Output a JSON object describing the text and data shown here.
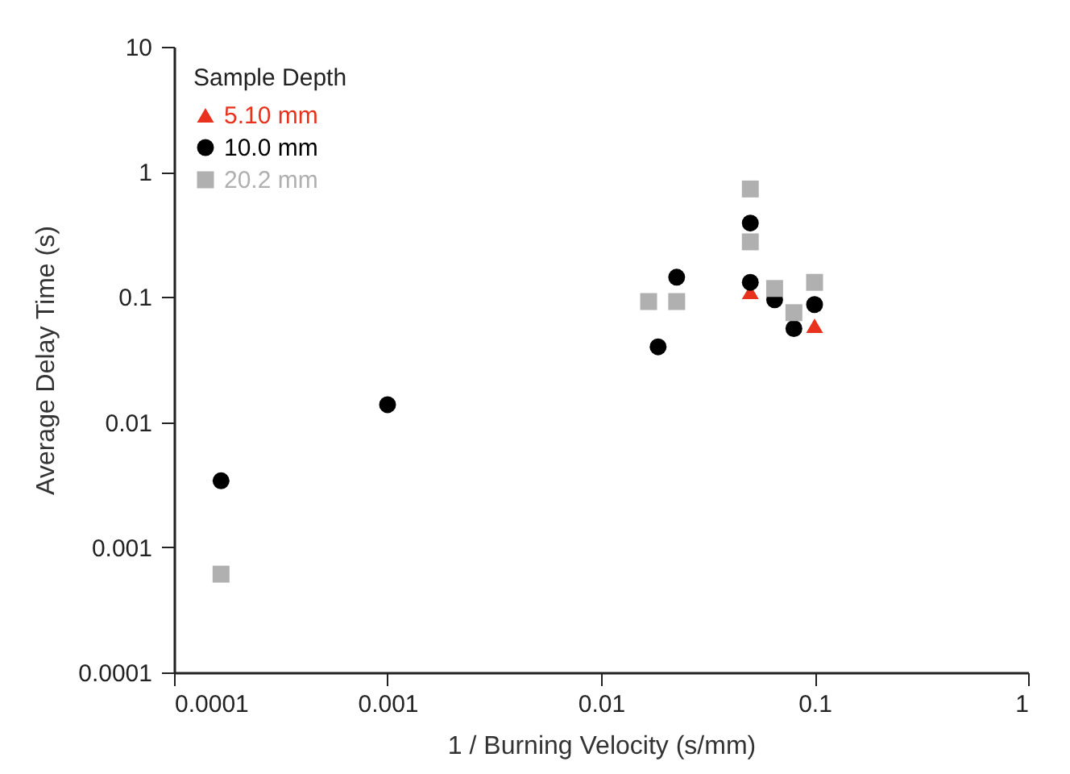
{
  "chart_data": {
    "type": "scatter",
    "xlabel": "1 / Burning Velocity (s/mm)",
    "ylabel": "Average Delay Time (s)",
    "legend_title": "Sample Depth",
    "legend": "top left",
    "log": "xy",
    "grid": false,
    "xlim": [
      0.0001,
      1
    ],
    "xticks": [
      0.0001,
      0.001,
      0.01,
      0.1,
      1
    ],
    "ylim": [
      0.0001,
      10
    ],
    "yticks": [
      0.0001,
      0.001,
      0.01,
      0.1,
      1,
      10
    ],
    "series": [
      {
        "name": "5.10 mm",
        "color": "#e8321e",
        "marker": "triangle",
        "x": [
          0.05,
          0.1
        ],
        "values": [
          0.11,
          0.059
        ]
      },
      {
        "name": "10.0 mm",
        "color": "#000000",
        "marker": "circle",
        "x": [
          0.000166,
          0.001,
          0.0185,
          0.0226,
          0.05,
          0.05,
          0.065,
          0.08,
          0.1
        ],
        "values": [
          0.0034,
          0.0138,
          0.04,
          0.144,
          0.39,
          0.131,
          0.095,
          0.056,
          0.087
        ]
      },
      {
        "name": "20.2 mm",
        "color": "#b0b0b0",
        "marker": "square",
        "x": [
          0.000166,
          0.0167,
          0.0226,
          0.05,
          0.05,
          0.065,
          0.08,
          0.1
        ],
        "values": [
          0.00061,
          0.092,
          0.092,
          0.73,
          0.276,
          0.117,
          0.075,
          0.131
        ]
      }
    ]
  }
}
